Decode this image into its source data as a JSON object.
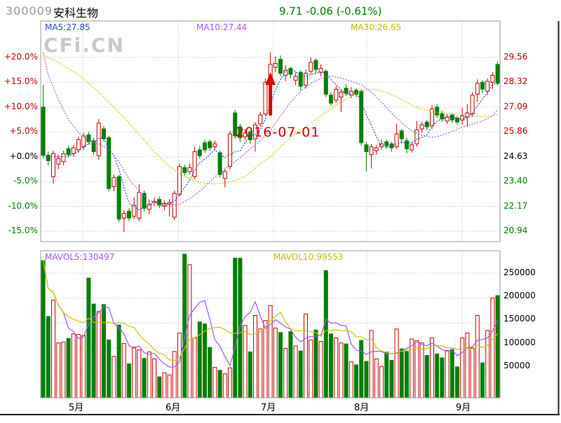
{
  "header": {
    "code": "300009",
    "name": "安科生物",
    "quote": "9.71 -0.06 (-0.61%)"
  },
  "watermark": "CFi.CN",
  "overlays": {
    "ma5_label": "MA5:27.85",
    "ma10_label": "MA10:27.44",
    "ma30_label": "MA30:26.65",
    "mavol5_label": "MAVOL5:130497",
    "mavol10_label": "MAVOL10:99553"
  },
  "chart_data": {
    "type": "candlestick+volume",
    "symbol": "300009",
    "base_price": 24.63,
    "left_axis_pct": [
      "+20.0%",
      "+15.0%",
      "+10.0%",
      "+5.0%",
      "+0.0%",
      "-5.0%",
      "-10.0%",
      "-15.0%"
    ],
    "left_axis_pct_values": [
      20,
      15,
      10,
      5,
      0,
      -5,
      -10,
      -15
    ],
    "right_axis_price": [
      "29.56",
      "28.32",
      "27.09",
      "25.86",
      "24.63",
      "23.40",
      "22.17",
      "20.94"
    ],
    "volume_axis": [
      "250000",
      "200000",
      "150000",
      "100000",
      "50000"
    ],
    "volume_axis_values": [
      250000,
      200000,
      150000,
      100000,
      50000
    ],
    "months": [
      "5月",
      "6月",
      "7月",
      "8月",
      "9月"
    ],
    "colors": {
      "up": "#CC0000",
      "down": "#008000",
      "ma5": "#2050C8",
      "ma10": "#AA55EE",
      "ma30": "#C8C800",
      "grid": "#BBBBBB",
      "border": "#999999",
      "frame": "#222222",
      "arrow": "#E00000"
    },
    "candles": [
      [
        27.09,
        28.2,
        24.56,
        24.7
      ],
      [
        24.7,
        24.88,
        24.19,
        24.43
      ],
      [
        23.64,
        24.93,
        23.28,
        24.78
      ],
      [
        24.26,
        24.73,
        24.01,
        24.53
      ],
      [
        24.38,
        24.93,
        24.19,
        24.78
      ],
      [
        25.02,
        25.17,
        24.58,
        24.73
      ],
      [
        24.78,
        25.22,
        24.63,
        25.07
      ],
      [
        24.97,
        25.62,
        24.83,
        25.47
      ],
      [
        25.12,
        25.81,
        24.97,
        25.66
      ],
      [
        25.71,
        25.86,
        25.22,
        25.37
      ],
      [
        25.42,
        25.57,
        24.73,
        24.88
      ],
      [
        24.68,
        26.5,
        24.48,
        26.3
      ],
      [
        26.01,
        26.16,
        25.37,
        25.52
      ],
      [
        25.57,
        25.66,
        22.91,
        23.05
      ],
      [
        23.15,
        23.74,
        22.91,
        23.6
      ],
      [
        23.64,
        23.74,
        21.38,
        21.53
      ],
      [
        21.58,
        21.97,
        20.89,
        21.82
      ],
      [
        21.92,
        22.07,
        21.43,
        21.58
      ],
      [
        21.67,
        22.61,
        21.53,
        22.22
      ],
      [
        21.58,
        23.25,
        21.43,
        22.86
      ],
      [
        22.81,
        22.95,
        21.92,
        22.07
      ],
      [
        22.02,
        22.46,
        21.77,
        22.27
      ],
      [
        22.36,
        22.61,
        22.17,
        22.41
      ],
      [
        22.51,
        22.66,
        22.07,
        22.22
      ],
      [
        22.17,
        22.46,
        21.97,
        22.31
      ],
      [
        22.27,
        22.51,
        21.67,
        22.36
      ],
      [
        21.63,
        22.95,
        21.48,
        22.81
      ],
      [
        22.76,
        24.29,
        22.66,
        24.14
      ],
      [
        24.09,
        24.24,
        23.69,
        23.84
      ],
      [
        23.89,
        24.29,
        23.74,
        24.09
      ],
      [
        23.64,
        25.12,
        23.5,
        24.88
      ],
      [
        24.97,
        25.17,
        24.53,
        24.68
      ],
      [
        25.32,
        25.47,
        24.83,
        24.97
      ],
      [
        25.37,
        25.47,
        24.93,
        25.07
      ],
      [
        25.12,
        25.42,
        24.97,
        25.27
      ],
      [
        24.83,
        24.93,
        23.6,
        23.74
      ],
      [
        23.55,
        24.04,
        23.1,
        23.89
      ],
      [
        24.14,
        25.91,
        23.99,
        25.76
      ],
      [
        26.8,
        26.95,
        25.52,
        25.66
      ],
      [
        26.11,
        26.26,
        25.37,
        25.57
      ],
      [
        25.62,
        26.01,
        25.47,
        25.81
      ],
      [
        25.86,
        25.96,
        25.27,
        25.47
      ],
      [
        25.52,
        26.35,
        24.88,
        26.21
      ],
      [
        26.26,
        26.85,
        26.11,
        26.7
      ],
      [
        26.75,
        28.52,
        26.65,
        28.32
      ],
      [
        28.42,
        29.8,
        28.32,
        29.21
      ],
      [
        29.06,
        29.61,
        28.82,
        29.26
      ],
      [
        29.46,
        29.65,
        28.62,
        28.77
      ],
      [
        28.67,
        29.16,
        28.37,
        28.92
      ],
      [
        29.01,
        29.11,
        28.52,
        28.72
      ],
      [
        28.42,
        28.82,
        28.18,
        28.62
      ],
      [
        28.82,
        28.92,
        27.93,
        28.13
      ],
      [
        28.18,
        28.96,
        28.03,
        28.77
      ],
      [
        28.87,
        29.56,
        28.72,
        29.31
      ],
      [
        29.41,
        29.51,
        28.77,
        28.96
      ],
      [
        28.82,
        29.21,
        28.62,
        29.01
      ],
      [
        28.87,
        28.96,
        27.59,
        27.73
      ],
      [
        27.68,
        27.83,
        27.14,
        27.29
      ],
      [
        27.44,
        28.13,
        27.29,
        27.98
      ],
      [
        27.59,
        27.98,
        26.85,
        27.83
      ],
      [
        28.03,
        28.23,
        27.64,
        27.78
      ],
      [
        27.68,
        28.08,
        27.54,
        27.88
      ],
      [
        27.93,
        28.03,
        27.59,
        27.73
      ],
      [
        27.88,
        27.98,
        25.17,
        25.32
      ],
      [
        25.22,
        25.37,
        23.89,
        24.88
      ],
      [
        24.73,
        25.27,
        24.04,
        25.12
      ],
      [
        24.93,
        25.22,
        24.73,
        25.07
      ],
      [
        25.12,
        25.47,
        24.97,
        25.27
      ],
      [
        25.37,
        25.47,
        25.02,
        25.17
      ],
      [
        25.27,
        25.37,
        24.88,
        25.07
      ],
      [
        25.12,
        26.26,
        25.02,
        25.76
      ],
      [
        25.91,
        26.01,
        25.27,
        25.52
      ],
      [
        25.42,
        25.57,
        24.78,
        25.02
      ],
      [
        24.97,
        25.37,
        24.83,
        25.22
      ],
      [
        25.27,
        26.4,
        25.12,
        25.96
      ],
      [
        26.01,
        26.35,
        25.81,
        26.21
      ],
      [
        26.35,
        26.45,
        25.96,
        26.11
      ],
      [
        26.16,
        27.19,
        26.01,
        27.0
      ],
      [
        27.09,
        27.24,
        26.55,
        26.7
      ],
      [
        26.75,
        26.9,
        26.35,
        26.5
      ],
      [
        26.4,
        26.75,
        26.26,
        26.6
      ],
      [
        26.7,
        26.8,
        26.3,
        26.45
      ],
      [
        26.55,
        26.65,
        26.21,
        26.35
      ],
      [
        26.45,
        27.04,
        26.21,
        26.65
      ],
      [
        26.6,
        27.24,
        26.11,
        26.8
      ],
      [
        26.75,
        27.83,
        26.6,
        27.68
      ],
      [
        27.73,
        28.47,
        27.34,
        28.27
      ],
      [
        28.32,
        28.42,
        27.78,
        27.98
      ],
      [
        27.88,
        28.52,
        27.68,
        28.37
      ],
      [
        28.32,
        28.82,
        27.98,
        28.67
      ],
      [
        29.21,
        29.36,
        28.17,
        28.27
      ]
    ],
    "volumes": [
      275000,
      163000,
      196000,
      110000,
      112000,
      119000,
      128000,
      127000,
      125000,
      240000,
      188000,
      173000,
      187000,
      116000,
      83000,
      146000,
      109000,
      68000,
      100000,
      96000,
      79000,
      92000,
      78000,
      42000,
      50000,
      46000,
      93000,
      130000,
      288000,
      267000,
      120000,
      152000,
      148000,
      101000,
      61000,
      55000,
      48000,
      60000,
      280000,
      280000,
      145000,
      92000,
      165000,
      138000,
      155000,
      185000,
      140000,
      131000,
      99000,
      133000,
      104000,
      94000,
      168000,
      116000,
      136000,
      113000,
      255000,
      128000,
      120000,
      110000,
      108000,
      72000,
      66000,
      115000,
      73000,
      135000,
      78000,
      63000,
      92000,
      75000,
      138000,
      98000,
      93000,
      118000,
      115000,
      110000,
      85000,
      120000,
      88000,
      80000,
      95000,
      97000,
      62000,
      120000,
      130000,
      100000,
      165000,
      70000,
      135000,
      200000,
      205000
    ],
    "ma10_pct": [
      [
        1,
        21
      ],
      [
        2,
        16.5
      ],
      [
        4,
        11.5
      ],
      [
        6,
        7.5
      ],
      [
        8,
        4.8
      ],
      [
        10,
        3.2
      ],
      [
        12,
        2.6
      ],
      [
        14,
        1.5
      ],
      [
        16,
        -1
      ],
      [
        18,
        -4.5
      ],
      [
        20,
        -7
      ],
      [
        22,
        -8.8
      ],
      [
        24,
        -9.7
      ],
      [
        26,
        -10
      ],
      [
        28,
        -9.6
      ],
      [
        30,
        -8.5
      ],
      [
        32,
        -7
      ],
      [
        34,
        -5
      ],
      [
        36,
        -3.2
      ],
      [
        38,
        -1.8
      ],
      [
        40,
        -0.2
      ],
      [
        42,
        1.6
      ],
      [
        44,
        3.2
      ],
      [
        46,
        5.2
      ],
      [
        48,
        8.2
      ],
      [
        50,
        11
      ],
      [
        52,
        13.2
      ],
      [
        54,
        14.8
      ],
      [
        56,
        15.8
      ],
      [
        58,
        16.3
      ],
      [
        60,
        15.8
      ],
      [
        62,
        15.2
      ],
      [
        64,
        14.5
      ],
      [
        66,
        13
      ],
      [
        68,
        11
      ],
      [
        70,
        8.8
      ],
      [
        72,
        6.8
      ],
      [
        74,
        5.2
      ],
      [
        76,
        4.3
      ],
      [
        78,
        3.9
      ],
      [
        80,
        4.3
      ],
      [
        82,
        5.1
      ],
      [
        84,
        6
      ],
      [
        86,
        6.6
      ],
      [
        88,
        7.2
      ],
      [
        90,
        8.2
      ],
      [
        91,
        9.5
      ]
    ],
    "ma30_pct": [
      [
        1,
        20.5
      ],
      [
        4,
        19
      ],
      [
        8,
        16.5
      ],
      [
        12,
        13
      ],
      [
        16,
        9
      ],
      [
        20,
        4.5
      ],
      [
        23,
        1
      ],
      [
        26,
        -2
      ],
      [
        29,
        -4
      ],
      [
        32,
        -5.2
      ],
      [
        35,
        -5.5
      ],
      [
        38,
        -5.2
      ],
      [
        41,
        -4
      ],
      [
        44,
        -1.5
      ],
      [
        46,
        0
      ],
      [
        48,
        2
      ],
      [
        50,
        3.8
      ],
      [
        52,
        5.3
      ],
      [
        54,
        6.8
      ],
      [
        56,
        8.2
      ],
      [
        58,
        9.6
      ],
      [
        60,
        11
      ],
      [
        62,
        12.2
      ],
      [
        64,
        13.2
      ],
      [
        66,
        13.6
      ],
      [
        68,
        13.3
      ],
      [
        70,
        12.5
      ],
      [
        72,
        11.5
      ],
      [
        74,
        10.4
      ],
      [
        76,
        9.6
      ],
      [
        78,
        9
      ],
      [
        80,
        8.8
      ],
      [
        82,
        8.6
      ],
      [
        84,
        8.4
      ],
      [
        86,
        8.2
      ],
      [
        88,
        8.1
      ],
      [
        90,
        8.3
      ],
      [
        91,
        8.5
      ]
    ],
    "annotation": {
      "text": "2016-07-01",
      "candle_index": 46,
      "arrow_tip_pct": 17.0,
      "arrow_base_pct": 8.3
    }
  }
}
